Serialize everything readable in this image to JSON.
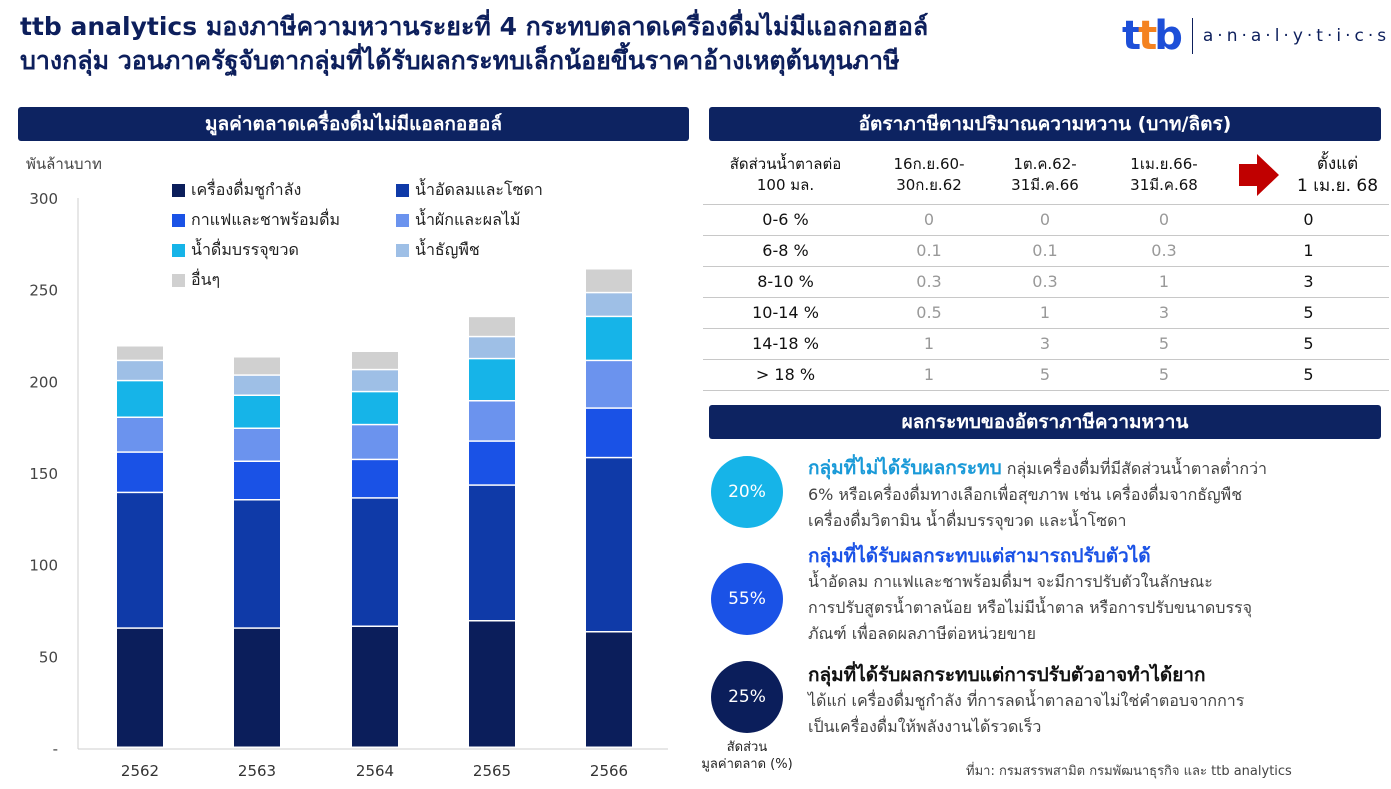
{
  "title": {
    "line1": "ttb analytics มองภาษีความหวานระยะที่ 4 กระทบตลาดเครื่องดื่มไม่มีแอลกอฮอล์",
    "line2": "บางกลุ่ม วอนภาครัฐจับตากลุ่มที่ได้รับผลกระทบเล็กน้อยขึ้นราคาอ้างเหตุต้นทุนภาษี"
  },
  "brand": {
    "logo_t1": "t",
    "logo_t2": "t",
    "logo_b": "b",
    "text": "a·n·a·l·y·t·i·c·s"
  },
  "left_panel": {
    "header": "มูลค่าตลาดเครื่องดื่มไม่มีแอลกอฮอล์"
  },
  "chart_data": {
    "type": "bar",
    "stacked": true,
    "ylabel": "พันล้านบาท",
    "ylim": [
      0,
      300
    ],
    "yticks": [
      "-",
      "50",
      "100",
      "150",
      "200",
      "250",
      "300"
    ],
    "categories": [
      "2562",
      "2563",
      "2564",
      "2565",
      "2566"
    ],
    "series": [
      {
        "name": "เครื่องดื่มชูกำลัง",
        "color": "#0b1e5b",
        "values": [
          65,
          65,
          66,
          69,
          63
        ]
      },
      {
        "name": "น้ำอัดลมและโซดา",
        "color": "#0f3aa8",
        "values": [
          74,
          70,
          70,
          74,
          95
        ]
      },
      {
        "name": "กาแฟและชาพร้อมดื่ม",
        "color": "#1a52e6",
        "values": [
          22,
          21,
          21,
          24,
          27
        ]
      },
      {
        "name": "น้ำผักและผลไม้",
        "color": "#6b93ee",
        "values": [
          19,
          18,
          19,
          22,
          26
        ]
      },
      {
        "name": "น้ำดื่มบรรจุขวด",
        "color": "#16b4e8",
        "values": [
          20,
          18,
          18,
          23,
          24
        ]
      },
      {
        "name": "น้ำธัญพืช",
        "color": "#9ebfe6",
        "values": [
          11,
          11,
          12,
          12,
          13
        ]
      },
      {
        "name": "อื่นๆ",
        "color": "#d0d0d0",
        "values": [
          8,
          10,
          10,
          11,
          13
        ]
      }
    ],
    "grid": false,
    "legend": "top"
  },
  "tax_panel": {
    "header": "อัตราภาษีตามปริมาณความหวาน (บาท/ลิตร)",
    "col0_line1": "สัดส่วนน้ำตาลต่อ",
    "col0_line2": "100 มล.",
    "periods": [
      {
        "line1": "16ก.ย.60-",
        "line2": "30ก.ย.62"
      },
      {
        "line1": "1ต.ค.62-",
        "line2": "31มี.ค.66"
      },
      {
        "line1": "1เม.ย.66-",
        "line2": "31มี.ค.68"
      },
      {
        "line1": "ตั้งแต่",
        "line2": "1 เม.ย. 68"
      }
    ],
    "rows": [
      {
        "range": "0-6 %",
        "v": [
          "0",
          "0",
          "0",
          "0"
        ]
      },
      {
        "range": "6-8 %",
        "v": [
          "0.1",
          "0.1",
          "0.3",
          "1"
        ]
      },
      {
        "range": "8-10 %",
        "v": [
          "0.3",
          "0.3",
          "1",
          "3"
        ]
      },
      {
        "range": "10-14 %",
        "v": [
          "0.5",
          "1",
          "3",
          "5"
        ]
      },
      {
        "range": "14-18 %",
        "v": [
          "1",
          "3",
          "5",
          "5"
        ]
      },
      {
        "range": "> 18 %",
        "v": [
          "1",
          "5",
          "5",
          "5"
        ]
      }
    ]
  },
  "impact_panel": {
    "header": "ผลกระทบของอัตราภาษีความหวาน",
    "items": [
      {
        "share": "20%",
        "color": "#16b4e8",
        "title": "กลุ่มที่ไม่ได้รับผลกระทบ",
        "title_color": "#1a9ad8",
        "lead": " กลุ่มเครื่องดื่มที่มีสัดส่วนน้ำตาลต่ำกว่า",
        "lines": [
          "6% หรือเครื่องดื่มทางเลือกเพื่อสุขภาพ เช่น เครื่องดื่มจากธัญพืช",
          "เครื่องดื่มวิตามิน น้ำดื่มบรรจุขวด และน้ำโซดา"
        ]
      },
      {
        "share": "55%",
        "color": "#1a52e6",
        "title": "กลุ่มที่ได้รับผลกระทบแต่สามารถปรับตัวได้",
        "title_color": "#1a52e6",
        "lines": [
          "น้ำอัดลม กาแฟและชาพร้อมดื่มฯ จะมีการปรับตัวในลักษณะ",
          "การปรับสูตรน้ำตาลน้อย หรือไม่มีน้ำตาล หรือการปรับขนาดบรรจุ",
          "ภัณฑ์ เพื่อลดผลภาษีต่อหน่วยขาย"
        ]
      },
      {
        "share": "25%",
        "color": "#0b1e5b",
        "title": "กลุ่มที่ได้รับผลกระทบแต่การปรับตัวอาจทำได้ยาก",
        "title_color": "#111111",
        "lines": [
          "ได้แก่ เครื่องดื่มชูกำลัง ที่การลดน้ำตาลอาจไม่ใช่คำตอบจากการ",
          "เป็นเครื่องดื่มให้พลังงานได้รวดเร็ว"
        ]
      }
    ],
    "share_label_line1": "สัดส่วน",
    "share_label_line2": "มูลค่าตลาด (%)"
  },
  "source": "ที่มา: กรมสรรพสามิต กรมพัฒนาธุรกิจ และ ttb analytics"
}
